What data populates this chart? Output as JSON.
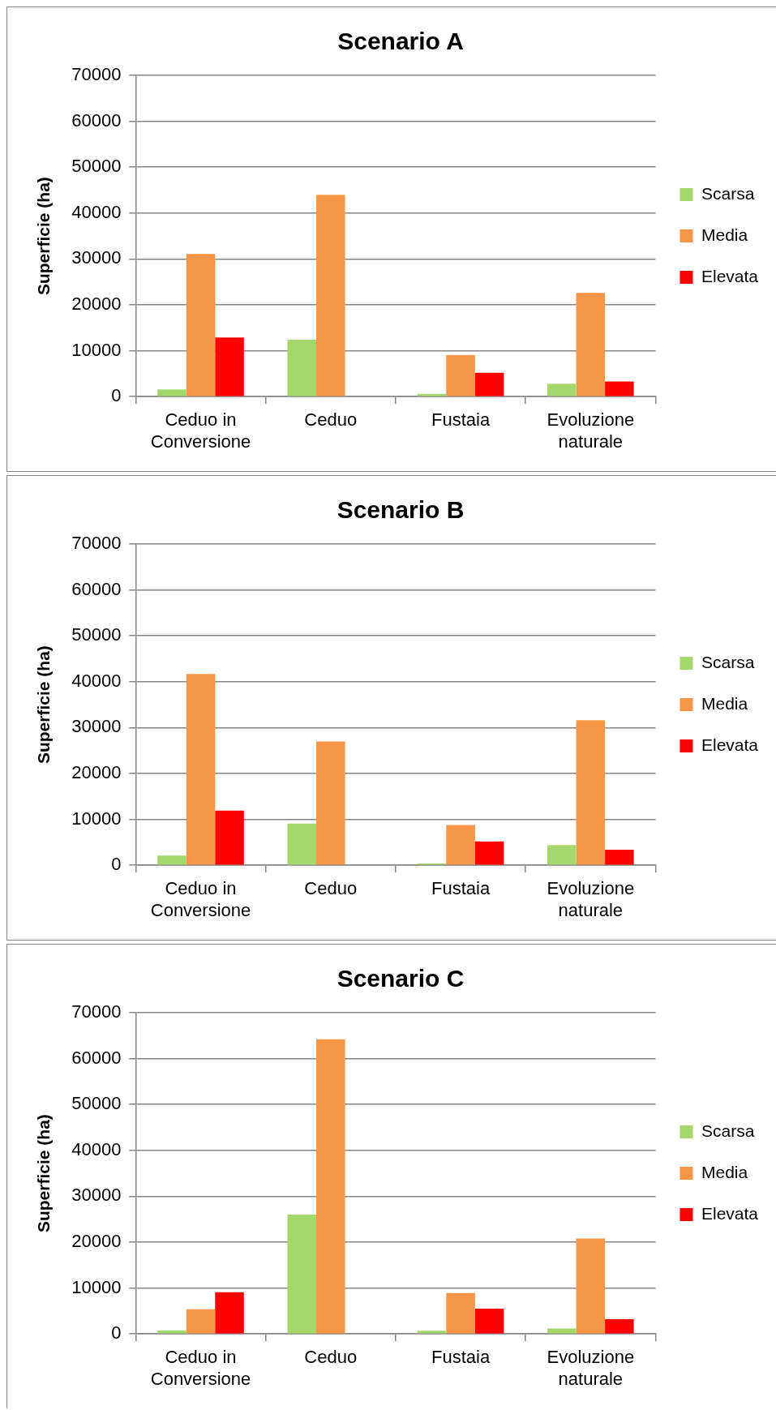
{
  "chart_data": [
    {
      "type": "bar",
      "title": "Scenario A",
      "ylabel": "Superficie (ha)",
      "categories": [
        "Ceduo in Conversione",
        "Ceduo",
        "Fustaia",
        "Evoluzione naturale"
      ],
      "series": [
        {
          "name": "Scarsa",
          "color": "#a5d86b",
          "values": [
            1600,
            12400,
            600,
            2800
          ]
        },
        {
          "name": "Media",
          "color": "#f79646",
          "values": [
            31100,
            44000,
            9100,
            22600
          ]
        },
        {
          "name": "Elevata",
          "color": "#ff0000",
          "values": [
            12900,
            0,
            5200,
            3300
          ]
        }
      ],
      "ylim": [
        0,
        70000
      ],
      "yticks": [
        0,
        10000,
        20000,
        30000,
        40000,
        50000,
        60000,
        70000
      ],
      "grid": "y",
      "legend": "right"
    },
    {
      "type": "bar",
      "title": "Scenario B",
      "ylabel": "Superficie (ha)",
      "categories": [
        "Ceduo in Conversione",
        "Ceduo",
        "Fustaia",
        "Evoluzione naturale"
      ],
      "series": [
        {
          "name": "Scarsa",
          "color": "#a5d86b",
          "values": [
            2100,
            9100,
            400,
            4400
          ]
        },
        {
          "name": "Media",
          "color": "#f79646",
          "values": [
            41700,
            27000,
            8800,
            31600
          ]
        },
        {
          "name": "Elevata",
          "color": "#ff0000",
          "values": [
            11900,
            0,
            5200,
            3400
          ]
        }
      ],
      "ylim": [
        0,
        70000
      ],
      "yticks": [
        0,
        10000,
        20000,
        30000,
        40000,
        50000,
        60000,
        70000
      ],
      "grid": "y",
      "legend": "right"
    },
    {
      "type": "bar",
      "title": "Scenario C",
      "ylabel": "Superficie (ha)",
      "categories": [
        "Ceduo in Conversione",
        "Ceduo",
        "Fustaia",
        "Evoluzione naturale"
      ],
      "series": [
        {
          "name": "Scarsa",
          "color": "#a5d86b",
          "values": [
            800,
            26000,
            700,
            1200
          ]
        },
        {
          "name": "Media",
          "color": "#f79646",
          "values": [
            5400,
            64200,
            8900,
            20800
          ]
        },
        {
          "name": "Elevata",
          "color": "#ff0000",
          "values": [
            9100,
            0,
            5500,
            3200
          ]
        }
      ],
      "ylim": [
        0,
        70000
      ],
      "yticks": [
        0,
        10000,
        20000,
        30000,
        40000,
        50000,
        60000,
        70000
      ],
      "grid": "y",
      "legend": "right"
    }
  ]
}
